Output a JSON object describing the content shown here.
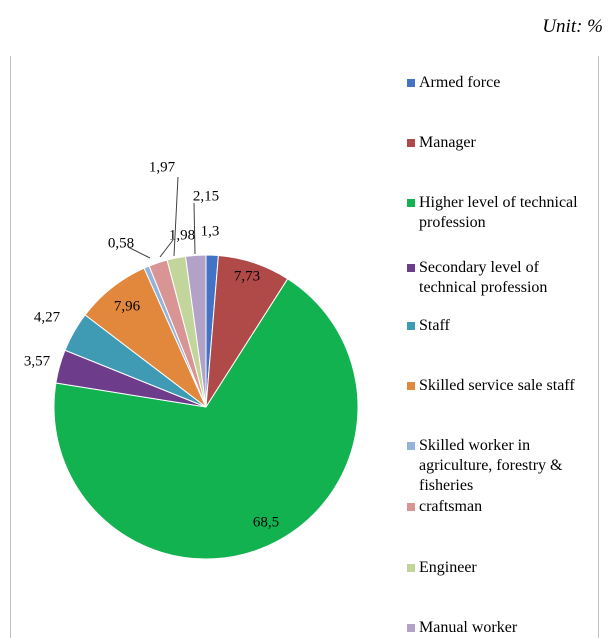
{
  "unit_label": "Unit: %",
  "chart_data": {
    "type": "pie",
    "start_angle_deg": 0,
    "direction": "clockwise",
    "legend_position": "right",
    "slices": [
      {
        "label": "Armed force",
        "value": 1.3,
        "data_label": "1,3",
        "color": "#4472c4"
      },
      {
        "label": "Manager",
        "value": 7.73,
        "data_label": "7,73",
        "color": "#b04a48"
      },
      {
        "label": "Higher level of technical profession",
        "value": 68.5,
        "data_label": "68,5",
        "color": "#11b24f"
      },
      {
        "label": "Secondary level of technical profession",
        "value": 3.57,
        "data_label": "3,57",
        "color": "#6d3d8c"
      },
      {
        "label": "Staff",
        "value": 4.27,
        "data_label": "4,27",
        "color": "#3f9ab3"
      },
      {
        "label": "Skilled service sale staff",
        "value": 7.96,
        "data_label": "7,96",
        "color": "#e1883d"
      },
      {
        "label": "Skilled worker in agriculture, forestry & fisheries",
        "value": 0.58,
        "data_label": "0,58",
        "color": "#94b3da"
      },
      {
        "label": "craftsman",
        "value": 1.98,
        "data_label": "1,98",
        "color": "#d99594"
      },
      {
        "label": "Engineer",
        "value": 1.97,
        "data_label": "1,97",
        "color": "#c2d69b"
      },
      {
        "label": "Manual worker",
        "value": 2.15,
        "data_label": "2,15",
        "color": "#b2a2c7"
      }
    ]
  }
}
